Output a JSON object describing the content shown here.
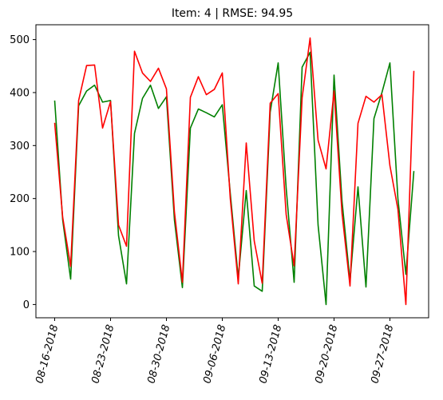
{
  "chart_data": {
    "type": "line",
    "title": "Item: 4 | RMSE: 94.95",
    "xlabel": "",
    "ylabel": "",
    "x_start_date": "2018-08-16",
    "x_tick_labels": [
      "08-16-2018",
      "08-23-2018",
      "08-30-2018",
      "09-06-2018",
      "09-13-2018",
      "09-20-2018",
      "09-27-2018"
    ],
    "y_ticks": [
      0,
      100,
      200,
      300,
      400,
      500
    ],
    "ylim": [
      -25,
      528
    ],
    "grid": false,
    "legend": "none",
    "series": [
      {
        "color": "#008000",
        "values": [
          385,
          160,
          48,
          375,
          403,
          414,
          382,
          385,
          130,
          39,
          323,
          389,
          414,
          370,
          392,
          160,
          32,
          333,
          369,
          362,
          354,
          377,
          210,
          50,
          215,
          35,
          25,
          363,
          456,
          220,
          42,
          448,
          476,
          150,
          0,
          433,
          195,
          45,
          222,
          33,
          351,
          400,
          456,
          200,
          57,
          252
        ]
      },
      {
        "color": "#ff0000",
        "values": [
          343,
          165,
          72,
          385,
          451,
          452,
          333,
          383,
          150,
          110,
          478,
          437,
          421,
          446,
          407,
          175,
          42,
          391,
          430,
          396,
          406,
          437,
          200,
          39,
          305,
          120,
          40,
          380,
          398,
          170,
          73,
          390,
          503,
          310,
          256,
          403,
          172,
          35,
          342,
          393,
          382,
          396,
          262,
          180,
          0,
          441
        ]
      }
    ]
  }
}
